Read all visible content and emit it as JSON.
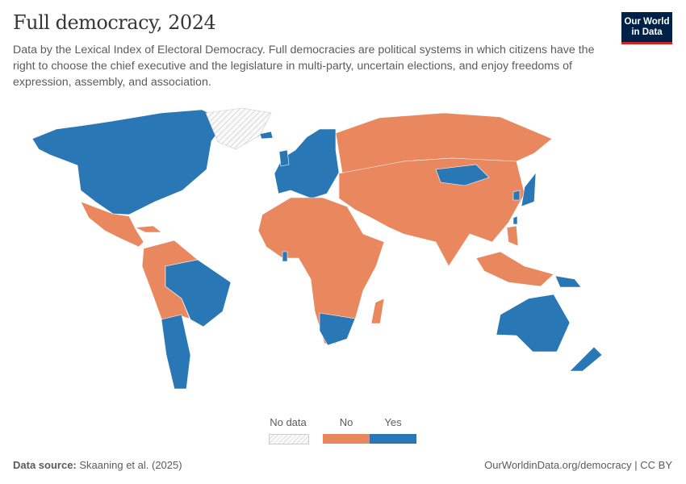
{
  "header": {
    "title": "Full democracy, 2024",
    "subtitle": "Data by the Lexical Index of Electoral Democracy. Full democracies are political systems in which citizens have the right to choose the chief executive and the legislature in multi-party, uncertain elections, and enjoy freedoms of expression, assembly, and association.",
    "logo_line1": "Our World",
    "logo_line2": "in Data"
  },
  "chart_data": {
    "type": "choropleth-map",
    "year": 2024,
    "categories": [
      {
        "label": "No data",
        "color": "hatched"
      },
      {
        "label": "No",
        "color": "#e9875f"
      },
      {
        "label": "Yes",
        "color": "#2a77b5"
      }
    ],
    "regions": [
      {
        "id": "north-america",
        "status": "Yes"
      },
      {
        "id": "greenland",
        "status": "No data"
      },
      {
        "id": "mexico-central-america",
        "status": "No"
      },
      {
        "id": "cuba",
        "status": "No"
      },
      {
        "id": "south-america-north",
        "status": "No"
      },
      {
        "id": "brazil",
        "status": "Yes"
      },
      {
        "id": "chile-argentina",
        "status": "Yes"
      },
      {
        "id": "europe",
        "status": "Yes"
      },
      {
        "id": "iceland",
        "status": "Yes"
      },
      {
        "id": "uk",
        "status": "Yes"
      },
      {
        "id": "russia",
        "status": "No"
      },
      {
        "id": "asia-middle-east",
        "status": "No"
      },
      {
        "id": "mongolia",
        "status": "Yes"
      },
      {
        "id": "japan",
        "status": "Yes"
      },
      {
        "id": "south-korea",
        "status": "Yes"
      },
      {
        "id": "taiwan",
        "status": "Yes"
      },
      {
        "id": "africa",
        "status": "No"
      },
      {
        "id": "south-africa-botswana",
        "status": "Yes"
      },
      {
        "id": "ghana",
        "status": "Yes"
      },
      {
        "id": "madagascar",
        "status": "No"
      },
      {
        "id": "indonesia",
        "status": "No"
      },
      {
        "id": "philippines",
        "status": "No"
      },
      {
        "id": "papua-new-guinea",
        "status": "Yes"
      },
      {
        "id": "australia",
        "status": "Yes"
      },
      {
        "id": "new-zealand",
        "status": "Yes"
      }
    ]
  },
  "legend": {
    "nodata": "No data",
    "no": "No",
    "yes": "Yes"
  },
  "footer": {
    "source_label": "Data source:",
    "source": "Skaaning et al. (2025)",
    "url": "OurWorldinData.org/democracy | CC BY"
  }
}
